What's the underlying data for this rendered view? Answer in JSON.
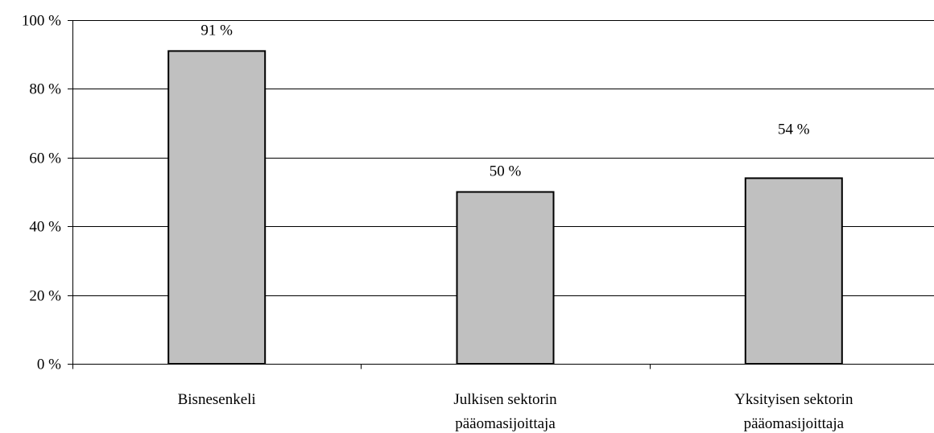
{
  "chart_data": {
    "type": "bar",
    "title": "",
    "xlabel": "",
    "ylabel": "",
    "categories": [
      [
        "Bisnesenkeli"
      ],
      [
        "Julkisen sektorin",
        "pääomasijoittaja"
      ],
      [
        "Yksityisen sektorin",
        "pääomasijoittaja"
      ]
    ],
    "values": [
      91,
      50,
      54
    ],
    "value_labels": [
      "91 %",
      "50 %",
      "54 %"
    ],
    "ylim": [
      0,
      100
    ],
    "yticks": [
      0,
      20,
      40,
      60,
      80,
      100
    ],
    "ytick_labels": [
      "0 %",
      "20 %",
      "40 %",
      "60 %",
      "80 %",
      "100 %"
    ],
    "grid": true,
    "legend": "none",
    "bar_color": "#c0c0c0",
    "bar_edge_color": "#000000"
  }
}
